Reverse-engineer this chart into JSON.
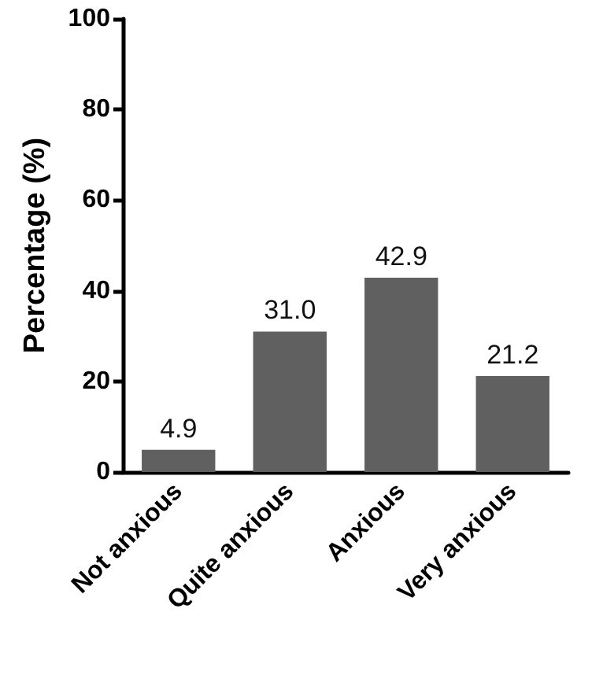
{
  "chart_data": {
    "type": "bar",
    "ylabel": "Percentage (%)",
    "categories": [
      "Not anxious",
      "Quite anxious",
      "Anxious",
      "Very anxious"
    ],
    "values": [
      4.9,
      31.0,
      42.9,
      21.2
    ],
    "value_labels": [
      "4.9",
      "31.0",
      "42.9",
      "21.2"
    ],
    "color": "#606060",
    "ylim": [
      0,
      100
    ],
    "yticks": [
      0,
      20,
      40,
      60,
      80,
      100
    ],
    "grid": false
  }
}
